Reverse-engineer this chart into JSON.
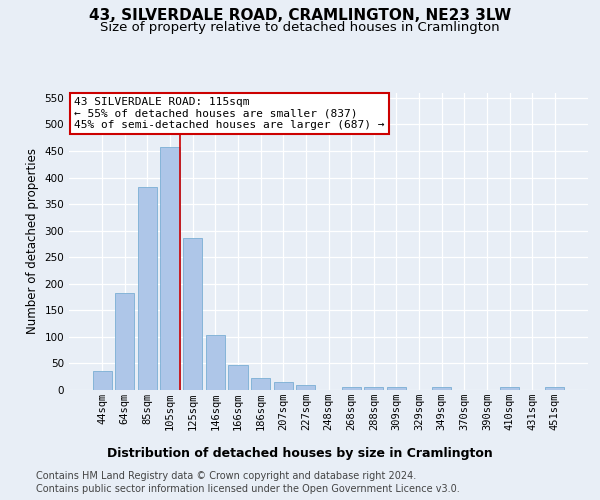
{
  "title": "43, SILVERDALE ROAD, CRAMLINGTON, NE23 3LW",
  "subtitle": "Size of property relative to detached houses in Cramlington",
  "xlabel": "Distribution of detached houses by size in Cramlington",
  "ylabel": "Number of detached properties",
  "footer_line1": "Contains HM Land Registry data © Crown copyright and database right 2024.",
  "footer_line2": "Contains public sector information licensed under the Open Government Licence v3.0.",
  "categories": [
    "44sqm",
    "64sqm",
    "85sqm",
    "105sqm",
    "125sqm",
    "146sqm",
    "166sqm",
    "186sqm",
    "207sqm",
    "227sqm",
    "248sqm",
    "268sqm",
    "288sqm",
    "309sqm",
    "329sqm",
    "349sqm",
    "370sqm",
    "390sqm",
    "410sqm",
    "431sqm",
    "451sqm"
  ],
  "values": [
    35,
    183,
    383,
    457,
    287,
    103,
    47,
    22,
    15,
    10,
    0,
    5,
    5,
    5,
    0,
    5,
    0,
    0,
    5,
    0,
    5
  ],
  "bar_color": "#aec6e8",
  "bar_edge_color": "#7aafd4",
  "red_line_color": "#cc0000",
  "annotation_text_line1": "43 SILVERDALE ROAD: 115sqm",
  "annotation_text_line2": "← 55% of detached houses are smaller (837)",
  "annotation_text_line3": "45% of semi-detached houses are larger (687) →",
  "annotation_box_color": "#ffffff",
  "annotation_box_edge": "#cc0000",
  "ylim": [
    0,
    560
  ],
  "yticks": [
    0,
    50,
    100,
    150,
    200,
    250,
    300,
    350,
    400,
    450,
    500,
    550
  ],
  "background_color": "#e8eef6",
  "grid_color": "#ffffff",
  "title_fontsize": 11,
  "subtitle_fontsize": 9.5,
  "ylabel_fontsize": 8.5,
  "xlabel_fontsize": 9,
  "tick_fontsize": 7.5,
  "footer_fontsize": 7,
  "annot_fontsize": 8
}
